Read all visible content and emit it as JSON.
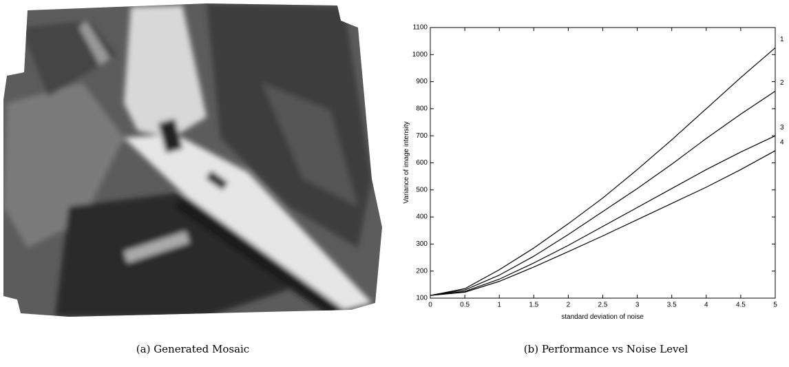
{
  "image_caption": "(a) Generated Mosaic",
  "chart_data": {
    "type": "line",
    "caption": "(b) Performance vs Noise Level",
    "xlabel": "standard deviation of noise",
    "ylabel": "Variance of image intensity",
    "x": [
      0,
      0.5,
      1,
      1.5,
      2,
      2.5,
      3,
      3.5,
      4,
      4.5,
      5
    ],
    "xlim": [
      0,
      5
    ],
    "ylim": [
      100,
      1100
    ],
    "xticks": [
      0,
      0.5,
      1,
      1.5,
      2,
      2.5,
      3,
      3.5,
      4,
      4.5,
      5
    ],
    "yticks": [
      100,
      200,
      300,
      400,
      500,
      600,
      700,
      800,
      900,
      1000,
      1100
    ],
    "grid": false,
    "series": [
      {
        "name": "1",
        "color": "#000000",
        "values": [
          110,
          135,
          205,
          285,
          375,
          470,
          575,
          685,
          800,
          915,
          1025
        ]
      },
      {
        "name": "2",
        "color": "#000000",
        "values": [
          110,
          130,
          185,
          255,
          335,
          420,
          505,
          595,
          690,
          780,
          865
        ]
      },
      {
        "name": "3",
        "color": "#000000",
        "values": [
          110,
          125,
          170,
          230,
          295,
          365,
          435,
          505,
          575,
          640,
          700
        ]
      },
      {
        "name": "4",
        "color": "#000000",
        "values": [
          110,
          122,
          162,
          215,
          272,
          330,
          390,
          450,
          510,
          575,
          645
        ]
      }
    ]
  }
}
